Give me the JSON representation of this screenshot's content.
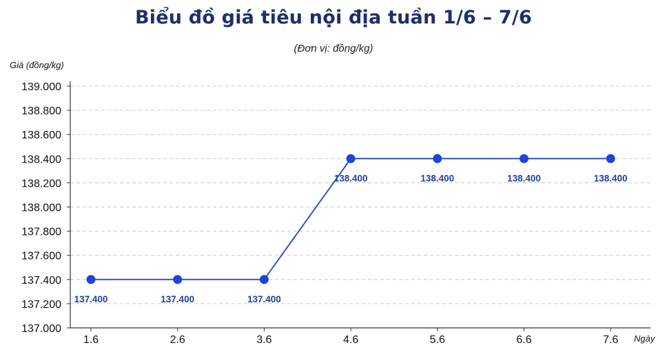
{
  "chart_data": {
    "type": "line",
    "title": "Biểu đồ giá tiêu nội địa tuần 1/6 – 7/6",
    "subtitle": "(Đơn vị: đồng/kg)",
    "xlabel": "Ngày",
    "ylabel": "Giá (đồng/kg)",
    "categories": [
      "1.6",
      "2.6",
      "3.6",
      "4.6",
      "5.6",
      "6.6",
      "7.6"
    ],
    "values": [
      137400,
      137400,
      137400,
      138400,
      138400,
      138400,
      138400
    ],
    "data_labels": [
      "137.400",
      "137.400",
      "137.400",
      "138.400",
      "138.400",
      "138.400",
      "138.400"
    ],
    "ylim": [
      137000,
      139000
    ],
    "yticks": [
      137000,
      137200,
      137400,
      137600,
      137800,
      138000,
      138200,
      138400,
      138600,
      138800,
      139000
    ],
    "ytick_labels": [
      "137.000",
      "137.200",
      "137.400",
      "137.600",
      "137.800",
      "138.000",
      "138.200",
      "138.400",
      "138.600",
      "138.800",
      "139.000"
    ],
    "grid": true,
    "legend": "none",
    "line_color": "#2f52c8",
    "marker_color": "#1f43d6",
    "label_color": "#22409e"
  }
}
